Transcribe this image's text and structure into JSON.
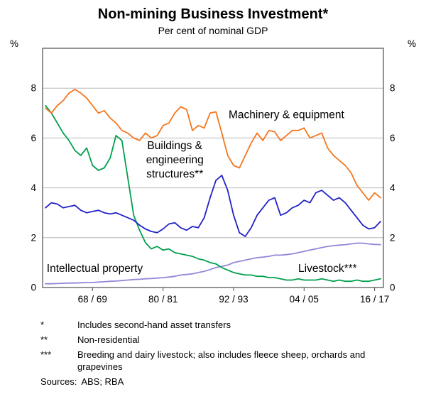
{
  "chart_data": {
    "type": "line",
    "title": "Non-mining Business Investment*",
    "subtitle": "Per cent of nominal GDP",
    "x_axis": {
      "min": 1960.5,
      "max": 2018.5,
      "tick_years": [
        1969,
        1981,
        1993,
        2005,
        2017
      ],
      "tick_labels": [
        "68 / 69",
        "80 / 81",
        "92 / 93",
        "04 / 05",
        "16 / 17"
      ]
    },
    "y_axis": {
      "min": 0,
      "max": 9.6,
      "ticks": [
        0,
        2,
        4,
        6,
        8
      ],
      "gridlines": [
        2,
        4,
        6,
        8
      ],
      "label": "%"
    },
    "style": {
      "grid_color": "#b8b8b8",
      "axis_color": "#4c4c4c"
    },
    "x": [
      1961,
      1962,
      1963,
      1964,
      1965,
      1966,
      1967,
      1968,
      1969,
      1970,
      1971,
      1972,
      1973,
      1974,
      1975,
      1976,
      1977,
      1978,
      1979,
      1980,
      1981,
      1982,
      1983,
      1984,
      1985,
      1986,
      1987,
      1988,
      1989,
      1990,
      1991,
      1992,
      1993,
      1994,
      1995,
      1996,
      1997,
      1998,
      1999,
      2000,
      2001,
      2002,
      2003,
      2004,
      2005,
      2006,
      2007,
      2008,
      2009,
      2010,
      2011,
      2012,
      2013,
      2014,
      2015,
      2016,
      2017,
      2018
    ],
    "series": [
      {
        "id": "ip",
        "name": "Intellectual property",
        "color": "#9486d8",
        "values": [
          0.15,
          0.15,
          0.16,
          0.17,
          0.18,
          0.18,
          0.19,
          0.2,
          0.2,
          0.22,
          0.23,
          0.25,
          0.26,
          0.28,
          0.3,
          0.32,
          0.33,
          0.35,
          0.36,
          0.38,
          0.4,
          0.42,
          0.45,
          0.5,
          0.52,
          0.55,
          0.6,
          0.65,
          0.72,
          0.8,
          0.85,
          0.9,
          1.0,
          1.05,
          1.1,
          1.15,
          1.2,
          1.22,
          1.25,
          1.3,
          1.3,
          1.32,
          1.35,
          1.4,
          1.45,
          1.5,
          1.55,
          1.6,
          1.65,
          1.68,
          1.7,
          1.72,
          1.75,
          1.78,
          1.78,
          1.75,
          1.73,
          1.72
        ]
      },
      {
        "id": "livestock",
        "name": "Livestock***",
        "color": "#00a04d",
        "values": [
          7.3,
          7.0,
          6.6,
          6.2,
          5.9,
          5.5,
          5.3,
          5.6,
          4.9,
          4.7,
          4.8,
          5.2,
          6.1,
          5.9,
          4.4,
          2.9,
          2.3,
          1.8,
          1.55,
          1.65,
          1.5,
          1.55,
          1.4,
          1.35,
          1.3,
          1.25,
          1.15,
          1.1,
          1.0,
          0.95,
          0.8,
          0.7,
          0.6,
          0.55,
          0.5,
          0.5,
          0.45,
          0.45,
          0.4,
          0.4,
          0.35,
          0.3,
          0.3,
          0.35,
          0.3,
          0.3,
          0.3,
          0.35,
          0.3,
          0.25,
          0.3,
          0.25,
          0.25,
          0.3,
          0.25,
          0.25,
          0.3,
          0.35
        ]
      },
      {
        "id": "buildings",
        "name": "Buildings & engineering structures**",
        "color": "#2121c8",
        "values": [
          3.2,
          3.4,
          3.35,
          3.2,
          3.25,
          3.3,
          3.1,
          3.0,
          3.05,
          3.1,
          3.0,
          2.95,
          3.0,
          2.9,
          2.8,
          2.7,
          2.5,
          2.35,
          2.25,
          2.2,
          2.35,
          2.55,
          2.6,
          2.4,
          2.3,
          2.45,
          2.4,
          2.8,
          3.6,
          4.3,
          4.5,
          3.9,
          2.9,
          2.2,
          2.05,
          2.4,
          2.9,
          3.2,
          3.5,
          3.6,
          2.9,
          3.0,
          3.2,
          3.3,
          3.5,
          3.4,
          3.8,
          3.9,
          3.7,
          3.5,
          3.6,
          3.4,
          3.1,
          2.8,
          2.5,
          2.35,
          2.4,
          2.65
        ]
      },
      {
        "id": "machinery",
        "name": "Machinery & equipment",
        "color": "#f5761d",
        "values": [
          7.2,
          7.0,
          7.3,
          7.5,
          7.8,
          7.95,
          7.8,
          7.6,
          7.3,
          7.0,
          7.1,
          6.8,
          6.6,
          6.3,
          6.2,
          6.0,
          5.9,
          6.2,
          6.0,
          6.1,
          6.5,
          6.6,
          7.0,
          7.25,
          7.15,
          6.3,
          6.5,
          6.4,
          7.0,
          7.05,
          6.2,
          5.3,
          4.9,
          4.8,
          5.3,
          5.8,
          6.2,
          5.9,
          6.3,
          6.25,
          5.9,
          6.1,
          6.3,
          6.3,
          6.4,
          6.0,
          6.1,
          6.2,
          5.6,
          5.3,
          5.1,
          4.9,
          4.6,
          4.1,
          3.8,
          3.5,
          3.8,
          3.6
        ]
      }
    ],
    "annotations": [
      {
        "id": "machinery",
        "lines": [
          "Machinery & equipment"
        ],
        "x": 2002,
        "y": 6.8,
        "anchor": "middle",
        "color": "#f5761d"
      },
      {
        "id": "buildings",
        "lines": [
          "Buildings &",
          "engineering",
          "structures**"
        ],
        "x": 1983,
        "y": 5.55,
        "anchor": "middle",
        "color": "#2121c8"
      },
      {
        "id": "ip",
        "lines": [
          "Intellectual property"
        ],
        "x": 1961.2,
        "y": 0.62,
        "anchor": "start",
        "color": "#9486d8"
      },
      {
        "id": "livestock",
        "lines": [
          "Livestock***"
        ],
        "x": 2004,
        "y": 0.62,
        "anchor": "start",
        "color": "#00a04d"
      }
    ]
  },
  "footnotes": [
    {
      "marker": "*",
      "text": "Includes second-hand asset transfers"
    },
    {
      "marker": "**",
      "text": "Non-residential"
    },
    {
      "marker": "***",
      "text": "Breeding and dairy livestock; also includes fleece sheep, orchards and grapevines"
    },
    {
      "marker": "Sources:",
      "text": "ABS; RBA"
    }
  ]
}
